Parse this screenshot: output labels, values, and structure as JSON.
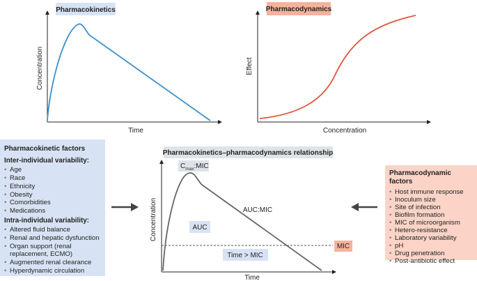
{
  "panels": {
    "pk": {
      "label": "Pharmacokinetics",
      "y_axis": "Concentration",
      "x_axis": "Time"
    },
    "pd": {
      "label": "Pharmacodynamics",
      "y_axis": "Effect",
      "x_axis": "Concentration"
    }
  },
  "pk_factors": {
    "title": "Pharmacokinetic factors",
    "groups": [
      {
        "heading": "Inter-individual variability:",
        "items": [
          "Age",
          "Race",
          "Ethnicity",
          "Obesity",
          "Comorbidities",
          "Medications"
        ]
      },
      {
        "heading": "Intra-individual variability:",
        "items": [
          "Altered fluid balance",
          "Renal and hepatic dysfunction",
          "Organ support (renal replacement, ECMO)",
          "Augmented renal clearance",
          "Hyperdynamic circulation"
        ]
      }
    ]
  },
  "relationship": {
    "title": "Pharmacokinetics–pharmacodynamics relationship",
    "y_axis": "Concentration",
    "x_axis": "Time",
    "cmax": {
      "c": "C",
      "sub": "max",
      "rest": ":MIC"
    },
    "auc": "AUC",
    "auc_mic": "AUC:MIC",
    "time_mic": "Time > MIC",
    "mic": "MIC"
  },
  "pd_factors": {
    "title": "Pharmacodynamic factors",
    "items": [
      "Host immune response",
      "Inoculum size",
      "Site of infection",
      "Biofilm formation",
      "MIC of microorganism",
      "Hetero-resistance",
      "Laboratory variability",
      "pH",
      "Drug penetration",
      "Post-antibiotic effect"
    ]
  }
}
